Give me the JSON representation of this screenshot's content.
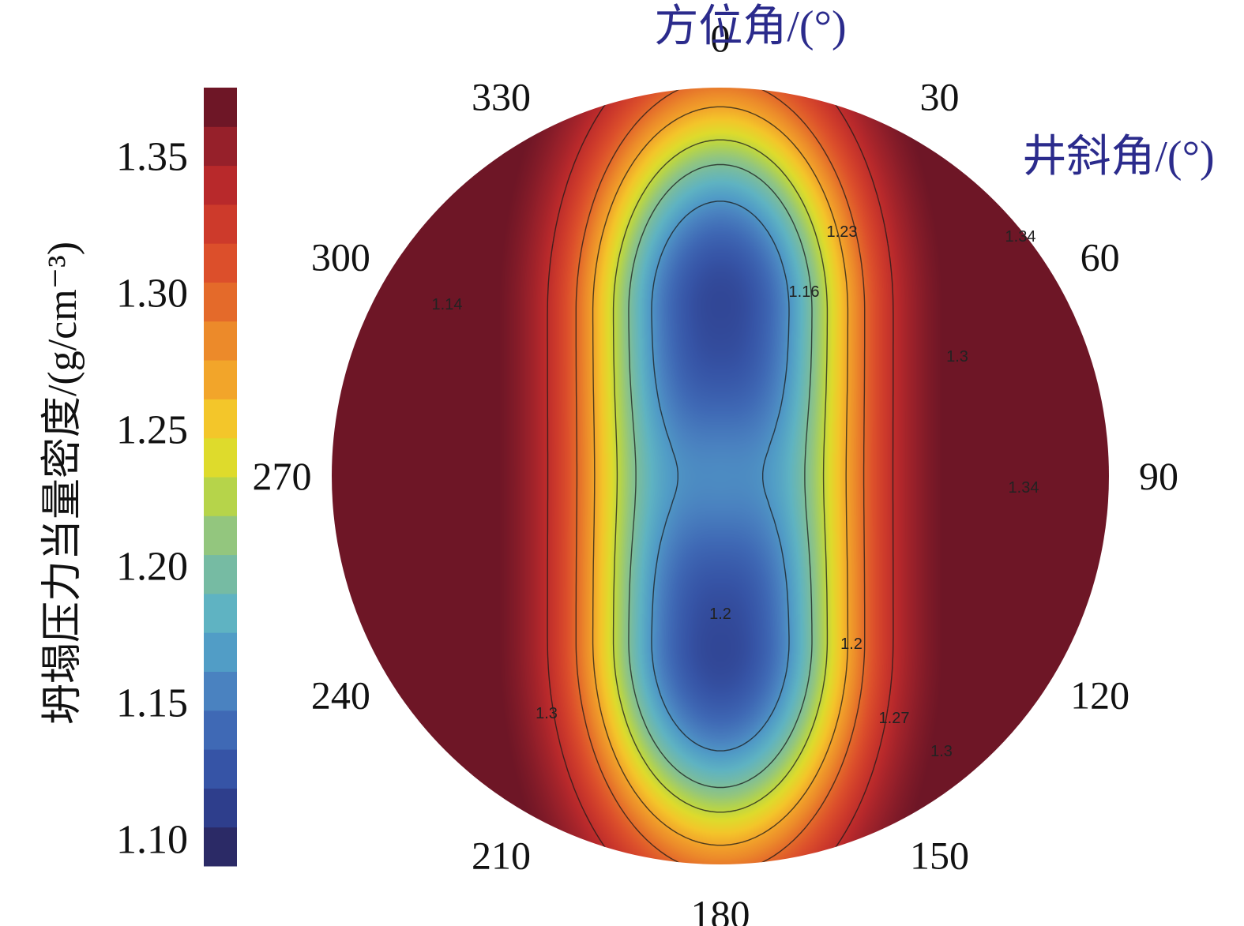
{
  "chart_data": {
    "type": "heatmap",
    "projection": "polar",
    "title": "",
    "azimuth_title": "方位角/(°)",
    "inclination_title": "井斜角/(°)",
    "azimuth_ticks": [
      "0",
      "30",
      "60",
      "90",
      "120",
      "150",
      "180",
      "210",
      "240",
      "270",
      "300",
      "330"
    ],
    "inclination_max": 90,
    "colorbar": {
      "label": "坍塌压力当量密度/(g/cm⁻³)",
      "range": [
        1.09,
        1.375
      ],
      "ticks": [
        "1.10",
        "1.15",
        "1.20",
        "1.25",
        "1.30",
        "1.35"
      ],
      "levels": 20,
      "colormap": "spectral",
      "colors": [
        "#2b2a66",
        "#2e3e8c",
        "#3654a6",
        "#3f69b5",
        "#4a82c0",
        "#519dc6",
        "#5fb3c2",
        "#76bba3",
        "#93c67e",
        "#b6d44a",
        "#dedb2c",
        "#f3c62a",
        "#f2a52a",
        "#ec8a2a",
        "#e46a2a",
        "#dc4f2b",
        "#cd3a2b",
        "#b8292b",
        "#96202a",
        "#6e1626"
      ]
    },
    "field_description": "minimum ~1.11 near inclination 45-50 at azimuth 0 and 180; maximum ~1.37 at inclination 90 along azimuth 90/270",
    "contour_labels": [
      "1.23",
      "1.16",
      "1.34",
      "1.3",
      "1.34",
      "1.14",
      "1.2",
      "1.27",
      "1.3",
      "1.3",
      "1.2"
    ],
    "contour_values": [
      1.16,
      1.2,
      1.23,
      1.27,
      1.3,
      1.34
    ],
    "minima": [
      {
        "azimuth": 0,
        "inclination": 45,
        "value": 1.11
      },
      {
        "azimuth": 180,
        "inclination": 48,
        "value": 1.11
      }
    ],
    "maximum": {
      "azimuth": 90,
      "inclination": 90,
      "value": 1.37
    }
  }
}
